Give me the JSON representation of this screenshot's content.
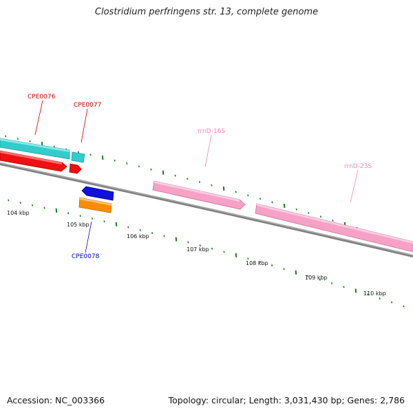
{
  "title": "Clostridium perfringens str. 13, complete genome",
  "footer": {
    "accession": "Accession: NC_003366",
    "summary": "Topology: circular; Length: 3,031,430 bp; Genes: 2,786"
  },
  "colors": {
    "backbone": "#808080",
    "tick": "#1a7a1a",
    "cds_forward_top": "#33cccc",
    "cds_forward_red": "#ee1111",
    "cds_reverse_blue": "#1111dd",
    "cds_reverse_orange": "#ff8c00",
    "rrna": "#f7a1c6",
    "label_red": "#cc0000",
    "label_blue": "#0000cc",
    "label_pink": "#ee88bb"
  },
  "scale_labels": [
    "104 kbp",
    "105 kbp",
    "106 kbp",
    "107 kbp",
    "108 kbp",
    "109 kbp",
    "110 kbp"
  ],
  "gene_labels": {
    "cpe0076": "CPE0076",
    "cpe0077": "CPE0077",
    "cpe0078": "CPE0078",
    "rrnd16s": "rrnD-16S",
    "rrnd23s": "rrnD-23S"
  }
}
